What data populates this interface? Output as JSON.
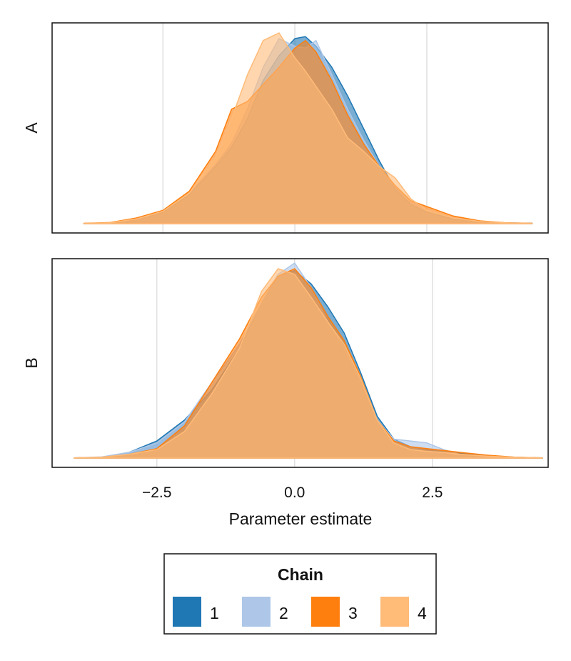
{
  "chart_data": {
    "type": "area",
    "subtype": "density",
    "xlabel": "Parameter estimate",
    "xticks": [
      -2.5,
      0.0,
      2.5
    ],
    "xtick_labels": [
      "−2.5",
      "0.0",
      "2.5"
    ],
    "grid": "vertical",
    "legend": {
      "title": "Chain",
      "placement": "bottom-center",
      "entries": [
        "1",
        "2",
        "3",
        "4"
      ]
    },
    "colors": [
      "#1f77b4",
      "#aec7e8",
      "#ff7f0e",
      "#ffbb78"
    ],
    "panels": [
      {
        "label": "A",
        "xlim": [
          -4.6,
          4.8
        ],
        "series": [
          {
            "name": "1",
            "x": [
              -4.0,
              -3.5,
              -3.0,
              -2.5,
              -2.0,
              -1.5,
              -1.2,
              -0.9,
              -0.6,
              -0.3,
              0.0,
              0.2,
              0.4,
              0.7,
              1.0,
              1.3,
              1.6,
              1.9,
              2.2,
              2.5,
              3.0,
              3.5,
              4.0,
              4.5
            ],
            "y": [
              0.001,
              0.004,
              0.02,
              0.06,
              0.15,
              0.3,
              0.4,
              0.55,
              0.75,
              0.88,
              0.97,
              0.98,
              0.93,
              0.82,
              0.67,
              0.5,
              0.33,
              0.18,
              0.1,
              0.06,
              0.025,
              0.01,
              0.004,
              0.002
            ]
          },
          {
            "name": "2",
            "x": [
              -4.0,
              -3.5,
              -3.0,
              -2.5,
              -2.0,
              -1.5,
              -1.2,
              -0.9,
              -0.6,
              -0.3,
              0.0,
              0.2,
              0.4,
              0.7,
              1.0,
              1.3,
              1.6,
              1.9,
              2.2,
              2.5,
              3.0,
              3.5,
              4.0,
              4.5
            ],
            "y": [
              0.001,
              0.005,
              0.022,
              0.065,
              0.16,
              0.31,
              0.42,
              0.6,
              0.82,
              0.97,
              0.93,
              0.92,
              0.96,
              0.78,
              0.6,
              0.44,
              0.3,
              0.19,
              0.12,
              0.07,
              0.03,
              0.012,
              0.004,
              0.001
            ]
          },
          {
            "name": "3",
            "x": [
              -4.0,
              -3.5,
              -3.0,
              -2.5,
              -2.0,
              -1.5,
              -1.2,
              -0.9,
              -0.6,
              -0.3,
              0.0,
              0.2,
              0.4,
              0.7,
              1.0,
              1.3,
              1.6,
              1.9,
              2.2,
              2.5,
              3.0,
              3.5,
              4.0,
              4.5
            ],
            "y": [
              0.002,
              0.006,
              0.03,
              0.07,
              0.17,
              0.38,
              0.6,
              0.64,
              0.73,
              0.82,
              0.92,
              0.96,
              0.9,
              0.75,
              0.57,
              0.42,
              0.3,
              0.2,
              0.12,
              0.09,
              0.04,
              0.015,
              0.005,
              0.002
            ]
          },
          {
            "name": "4",
            "x": [
              -4.0,
              -3.5,
              -3.0,
              -2.5,
              -2.0,
              -1.5,
              -1.2,
              -0.9,
              -0.6,
              -0.3,
              0.0,
              0.2,
              0.4,
              0.7,
              1.0,
              1.3,
              1.6,
              1.9,
              2.2,
              2.5,
              3.0,
              3.5,
              4.0,
              4.5
            ],
            "y": [
              0.001,
              0.005,
              0.025,
              0.065,
              0.16,
              0.35,
              0.55,
              0.78,
              0.96,
              1.0,
              0.87,
              0.8,
              0.72,
              0.6,
              0.45,
              0.38,
              0.3,
              0.24,
              0.13,
              0.07,
              0.03,
              0.012,
              0.004,
              0.001
            ]
          }
        ]
      },
      {
        "label": "B",
        "xlim": [
          -4.4,
          4.6
        ],
        "series": [
          {
            "name": "1",
            "x": [
              -4.0,
              -3.5,
              -3.0,
              -2.5,
              -2.0,
              -1.5,
              -1.0,
              -0.6,
              -0.3,
              0.0,
              0.3,
              0.6,
              0.9,
              1.2,
              1.5,
              1.8,
              2.1,
              2.4,
              2.7,
              3.0,
              3.5,
              4.0,
              4.5
            ],
            "y": [
              0.001,
              0.005,
              0.03,
              0.09,
              0.2,
              0.36,
              0.58,
              0.82,
              0.96,
              0.99,
              0.92,
              0.8,
              0.66,
              0.45,
              0.22,
              0.1,
              0.06,
              0.045,
              0.035,
              0.025,
              0.012,
              0.004,
              0.001
            ]
          },
          {
            "name": "2",
            "x": [
              -4.0,
              -3.5,
              -3.0,
              -2.5,
              -2.0,
              -1.5,
              -1.0,
              -0.6,
              -0.3,
              0.0,
              0.3,
              0.6,
              0.9,
              1.2,
              1.5,
              1.8,
              2.1,
              2.4,
              2.7,
              3.0,
              3.5,
              4.0,
              4.5
            ],
            "y": [
              0.001,
              0.006,
              0.03,
              0.08,
              0.19,
              0.4,
              0.6,
              0.82,
              0.97,
              1.03,
              0.9,
              0.72,
              0.58,
              0.4,
              0.2,
              0.1,
              0.09,
              0.08,
              0.045,
              0.02,
              0.008,
              0.003,
              0.001
            ]
          },
          {
            "name": "3",
            "x": [
              -4.0,
              -3.5,
              -3.0,
              -2.5,
              -2.0,
              -1.5,
              -1.0,
              -0.6,
              -0.3,
              0.0,
              0.3,
              0.6,
              0.9,
              1.2,
              1.5,
              1.8,
              2.1,
              2.4,
              2.7,
              3.0,
              3.5,
              4.0,
              4.5
            ],
            "y": [
              0.001,
              0.004,
              0.02,
              0.05,
              0.17,
              0.4,
              0.63,
              0.85,
              0.96,
              1.0,
              0.9,
              0.75,
              0.62,
              0.43,
              0.2,
              0.09,
              0.06,
              0.05,
              0.04,
              0.03,
              0.015,
              0.005,
              0.001
            ]
          },
          {
            "name": "4",
            "x": [
              -4.0,
              -3.5,
              -3.0,
              -2.5,
              -2.0,
              -1.5,
              -1.0,
              -0.6,
              -0.3,
              0.0,
              0.3,
              0.6,
              0.9,
              1.2,
              1.5,
              1.8,
              2.1,
              2.4,
              2.7,
              3.0,
              3.5,
              4.0,
              4.5
            ],
            "y": [
              0.001,
              0.005,
              0.02,
              0.045,
              0.14,
              0.34,
              0.58,
              0.88,
              1.0,
              0.97,
              0.85,
              0.72,
              0.6,
              0.42,
              0.2,
              0.08,
              0.045,
              0.035,
              0.03,
              0.02,
              0.01,
              0.004,
              0.001
            ]
          }
        ]
      }
    ]
  }
}
